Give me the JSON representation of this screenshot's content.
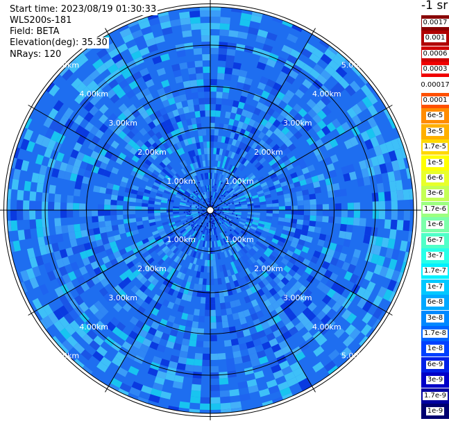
{
  "info": {
    "start_time": "Start time: 2023/08/19 01:30:33",
    "device": "WLS200s-181",
    "field": "Field: BETA",
    "elevation": "Elevation(deg): 35.30",
    "nrays": "NRays: 120"
  },
  "colorbar": {
    "unit": "-1 sr",
    "bins": [
      {
        "label": "0.0017",
        "color": "#880000"
      },
      {
        "label": "0.001",
        "color": "#b00000"
      },
      {
        "label": "0.0006",
        "color": "#d00000"
      },
      {
        "label": "0.0003",
        "color": "#f00000"
      },
      {
        "label": "0.00017",
        "color": "#ffffff"
      },
      {
        "label": "0.0001",
        "color": "#ff5000"
      },
      {
        "label": "6e-5",
        "color": "#ff8c00"
      },
      {
        "label": "3e-5",
        "color": "#ffb000"
      },
      {
        "label": "1.7e-5",
        "color": "#ffd800"
      },
      {
        "label": "1e-5",
        "color": "#ffff00"
      },
      {
        "label": "6e-6",
        "color": "#e8ff2a"
      },
      {
        "label": "3e-6",
        "color": "#c4ff55"
      },
      {
        "label": "1.7e-6",
        "color": "#9cff80"
      },
      {
        "label": "1e-6",
        "color": "#7cffaa"
      },
      {
        "label": "6e-7",
        "color": "#50ffc8"
      },
      {
        "label": "3e-7",
        "color": "#28ffe8"
      },
      {
        "label": "1.7e-7",
        "color": "#00f0ff"
      },
      {
        "label": "1e-7",
        "color": "#00c8ff"
      },
      {
        "label": "6e-8",
        "color": "#00a8ff"
      },
      {
        "label": "3e-8",
        "color": "#0088ff"
      },
      {
        "label": "1.7e-8",
        "color": "#0064ff"
      },
      {
        "label": "1e-8",
        "color": "#0040ff"
      },
      {
        "label": "6e-9",
        "color": "#0020e8"
      },
      {
        "label": "3e-9",
        "color": "#0000c8"
      },
      {
        "label": "1.7e-9",
        "color": "#0000a0"
      },
      {
        "label": "1e-9",
        "color": "#000070"
      }
    ]
  },
  "range_labels": [
    "1.00km",
    "2.00km",
    "3.00km",
    "4.00km",
    "5.00km"
  ],
  "colors": {
    "base_fill": "#1e6ef0",
    "speckle": [
      "#3a9cf8",
      "#2f86f4",
      "#1e64f0",
      "#1a55e6",
      "#44b0f8",
      "#0a3ae0",
      "#18c4f0"
    ],
    "grid": "#000000"
  }
}
